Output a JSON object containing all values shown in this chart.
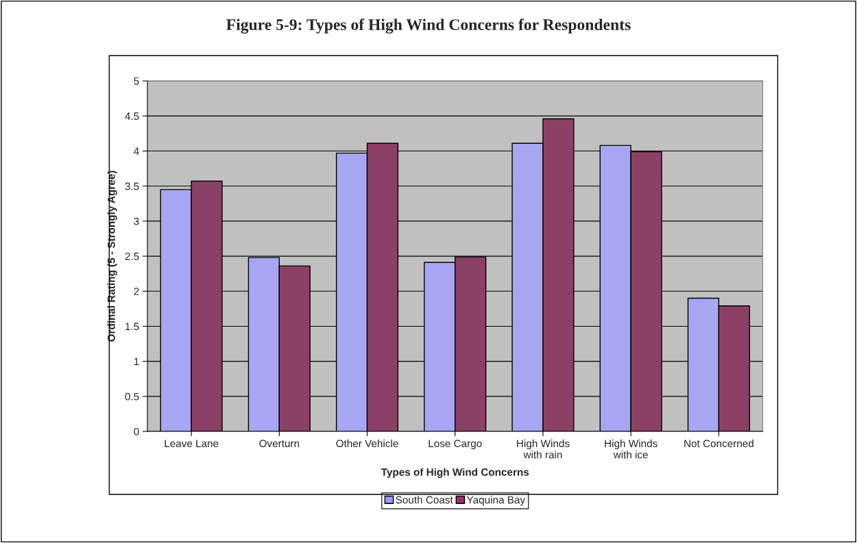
{
  "chart_data": {
    "type": "bar",
    "title": "Figure 5-9: Types of High Wind Concerns for Respondents",
    "xlabel": "Types of High Wind Concerns",
    "ylabel": "Ordinal Rating (5 - Strongly Agree)",
    "categories": [
      "Leave Lane",
      "Overturn",
      "Other Vehicle",
      "Lose Cargo",
      "High Winds\nwith rain",
      "High Winds\nwith ice",
      "Not Concerned"
    ],
    "series": [
      {
        "name": "South Coast",
        "color": "#9999ff",
        "values": [
          3.45,
          2.48,
          3.97,
          2.41,
          4.11,
          4.08,
          1.9
        ]
      },
      {
        "name": "Yaquina Bay",
        "color": "#993366",
        "values": [
          3.57,
          2.36,
          4.11,
          2.49,
          4.46,
          3.99,
          1.79
        ]
      }
    ],
    "ylim": [
      0,
      5
    ],
    "yticks": [
      0,
      0.5,
      1,
      1.5,
      2,
      2.5,
      3,
      3.5,
      4,
      4.5,
      5
    ],
    "grid": "y",
    "legend": "bottom"
  }
}
